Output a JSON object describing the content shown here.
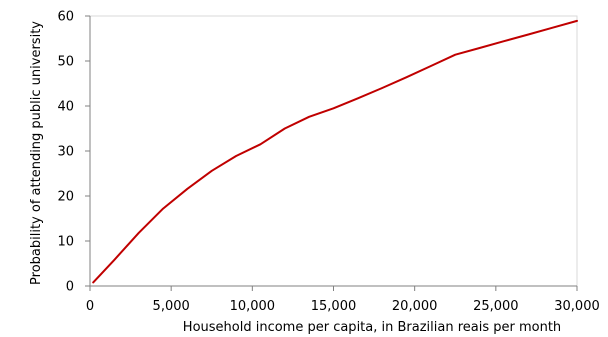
{
  "chart_data": {
    "type": "line",
    "title": "",
    "xlabel": "Household income per capita, in Brazilian reais per month",
    "ylabel": "Probability of attending public university",
    "xlim": [
      0,
      30000
    ],
    "ylim": [
      0,
      60
    ],
    "xticks": [
      0,
      5000,
      10000,
      15000,
      20000,
      25000,
      30000
    ],
    "xtick_labels": [
      "0",
      "5,000",
      "10,000",
      "15,000",
      "20,000",
      "25,000",
      "30,000"
    ],
    "yticks": [
      0,
      10,
      20,
      30,
      40,
      50,
      60
    ],
    "ytick_labels": [
      "0",
      "10",
      "20",
      "30",
      "40",
      "50",
      "60"
    ],
    "grid": false,
    "series": [
      {
        "color": "#c00000",
        "x": [
          200,
          1500,
          3000,
          4500,
          6000,
          7500,
          9000,
          10500,
          12000,
          13500,
          15000,
          16500,
          18000,
          19500,
          21000,
          22500,
          24000,
          25500,
          27000,
          28500,
          30000
        ],
        "y": [
          0.8,
          5.8,
          11.8,
          17.2,
          21.6,
          25.6,
          28.9,
          31.5,
          35.0,
          37.6,
          39.5,
          41.7,
          44.0,
          46.4,
          48.9,
          51.4,
          52.9,
          54.4,
          55.9,
          57.4,
          58.9
        ]
      }
    ]
  }
}
